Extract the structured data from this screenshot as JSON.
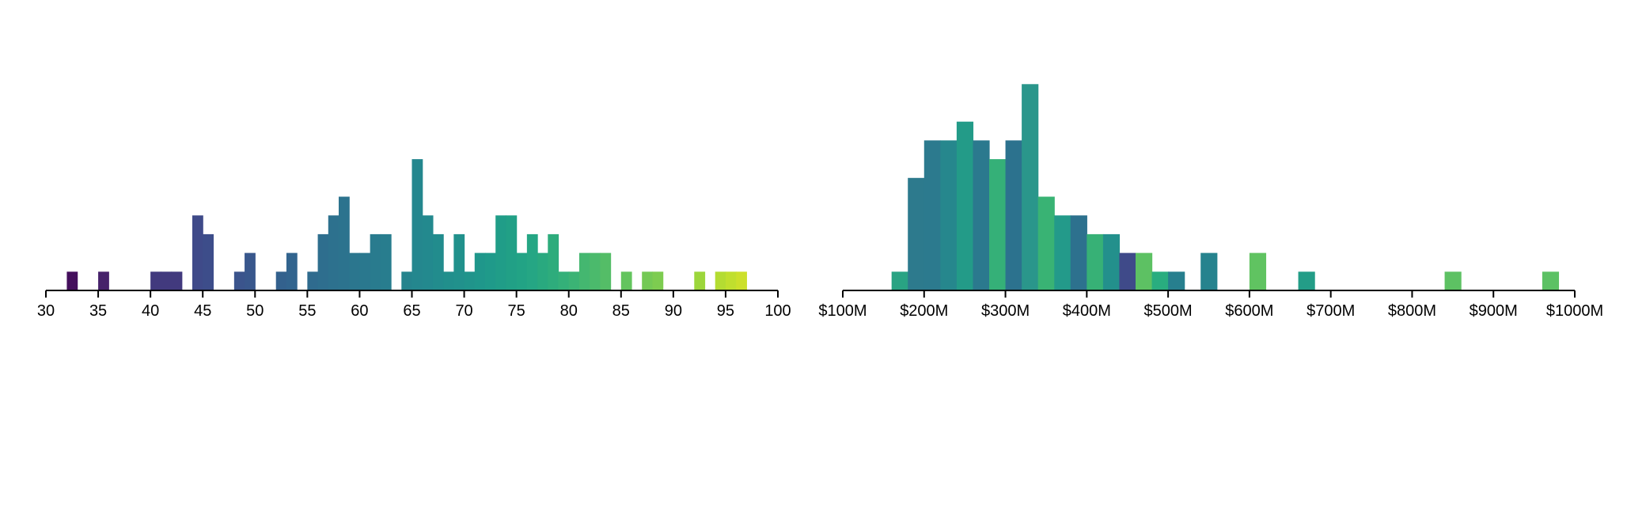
{
  "chart_data": [
    {
      "type": "bar",
      "xlabel": "",
      "ylabel": "",
      "xlim": [
        30,
        100
      ],
      "bin_width": 1,
      "ylim": [
        0,
        7
      ],
      "x_ticks": [
        {
          "value": 30,
          "label": "30"
        },
        {
          "value": 35,
          "label": "35"
        },
        {
          "value": 40,
          "label": "40"
        },
        {
          "value": 45,
          "label": "45"
        },
        {
          "value": 50,
          "label": "50"
        },
        {
          "value": 55,
          "label": "55"
        },
        {
          "value": 60,
          "label": "60"
        },
        {
          "value": 65,
          "label": "65"
        },
        {
          "value": 70,
          "label": "70"
        },
        {
          "value": 75,
          "label": "75"
        },
        {
          "value": 80,
          "label": "80"
        },
        {
          "value": 85,
          "label": "85"
        },
        {
          "value": 90,
          "label": "90"
        },
        {
          "value": 95,
          "label": "95"
        },
        {
          "value": 100,
          "label": "100"
        }
      ],
      "bars": [
        {
          "x": 32,
          "count": 1,
          "color": "#440f5c"
        },
        {
          "x": 35,
          "count": 1,
          "color": "#46216a"
        },
        {
          "x": 40,
          "count": 1,
          "color": "#423a7e"
        },
        {
          "x": 41,
          "count": 1,
          "color": "#423a7e"
        },
        {
          "x": 42,
          "count": 1,
          "color": "#423a7e"
        },
        {
          "x": 44,
          "count": 4,
          "color": "#3f4a89"
        },
        {
          "x": 45,
          "count": 3,
          "color": "#3d4d8a"
        },
        {
          "x": 48,
          "count": 1,
          "color": "#3b548c"
        },
        {
          "x": 49,
          "count": 2,
          "color": "#39578c"
        },
        {
          "x": 52,
          "count": 1,
          "color": "#33618d"
        },
        {
          "x": 53,
          "count": 2,
          "color": "#32648e"
        },
        {
          "x": 55,
          "count": 1,
          "color": "#2f6b8e"
        },
        {
          "x": 56,
          "count": 3,
          "color": "#2e6e8e"
        },
        {
          "x": 57,
          "count": 4,
          "color": "#2d718e"
        },
        {
          "x": 58,
          "count": 5,
          "color": "#2c738e"
        },
        {
          "x": 59,
          "count": 2,
          "color": "#2b768e"
        },
        {
          "x": 60,
          "count": 2,
          "color": "#2a788e"
        },
        {
          "x": 61,
          "count": 3,
          "color": "#297b8e"
        },
        {
          "x": 62,
          "count": 3,
          "color": "#287d8e"
        },
        {
          "x": 64,
          "count": 1,
          "color": "#25848d"
        },
        {
          "x": 65,
          "count": 7,
          "color": "#24878e"
        },
        {
          "x": 66,
          "count": 4,
          "color": "#23898e"
        },
        {
          "x": 67,
          "count": 3,
          "color": "#228c8d"
        },
        {
          "x": 68,
          "count": 1,
          "color": "#218f8c"
        },
        {
          "x": 69,
          "count": 3,
          "color": "#21918c"
        },
        {
          "x": 70,
          "count": 1,
          "color": "#20948b"
        },
        {
          "x": 71,
          "count": 2,
          "color": "#1f978b"
        },
        {
          "x": 72,
          "count": 2,
          "color": "#1f9a8a"
        },
        {
          "x": 73,
          "count": 4,
          "color": "#209d88"
        },
        {
          "x": 74,
          "count": 4,
          "color": "#21a086"
        },
        {
          "x": 75,
          "count": 2,
          "color": "#22a385"
        },
        {
          "x": 76,
          "count": 3,
          "color": "#25a684"
        },
        {
          "x": 77,
          "count": 2,
          "color": "#29a97f"
        },
        {
          "x": 78,
          "count": 3,
          "color": "#2eac7c"
        },
        {
          "x": 79,
          "count": 1,
          "color": "#34b079"
        },
        {
          "x": 80,
          "count": 1,
          "color": "#3bb375"
        },
        {
          "x": 81,
          "count": 2,
          "color": "#44b770"
        },
        {
          "x": 82,
          "count": 2,
          "color": "#4bba6c"
        },
        {
          "x": 83,
          "count": 2,
          "color": "#54bd67"
        },
        {
          "x": 85,
          "count": 1,
          "color": "#63c45e"
        },
        {
          "x": 87,
          "count": 1,
          "color": "#74c955"
        },
        {
          "x": 88,
          "count": 1,
          "color": "#7dcc50"
        },
        {
          "x": 92,
          "count": 1,
          "color": "#9cd63b"
        },
        {
          "x": 94,
          "count": 1,
          "color": "#b4dc32"
        },
        {
          "x": 95,
          "count": 1,
          "color": "#c0df2e"
        },
        {
          "x": 96,
          "count": 1,
          "color": "#cce02b"
        }
      ]
    },
    {
      "type": "bar",
      "xlabel": "",
      "ylabel": "",
      "xlim": [
        100,
        1000
      ],
      "bin_width": 20,
      "ylim": [
        0,
        11
      ],
      "x_ticks": [
        {
          "value": 100,
          "label": "$100M"
        },
        {
          "value": 200,
          "label": "$200M"
        },
        {
          "value": 300,
          "label": "$300M"
        },
        {
          "value": 400,
          "label": "$400M"
        },
        {
          "value": 500,
          "label": "$500M"
        },
        {
          "value": 600,
          "label": "$600M"
        },
        {
          "value": 700,
          "label": "$700M"
        },
        {
          "value": 800,
          "label": "$800M"
        },
        {
          "value": 900,
          "label": "$900M"
        },
        {
          "value": 1000,
          "label": "$1000M"
        }
      ],
      "bars": [
        {
          "x": 160,
          "count": 1,
          "color": "#29a383"
        },
        {
          "x": 180,
          "count": 6,
          "color": "#2d7a8d"
        },
        {
          "x": 200,
          "count": 8,
          "color": "#2c7a8e"
        },
        {
          "x": 220,
          "count": 8,
          "color": "#26878d"
        },
        {
          "x": 240,
          "count": 9,
          "color": "#239b88"
        },
        {
          "x": 260,
          "count": 8,
          "color": "#2b798e"
        },
        {
          "x": 280,
          "count": 7,
          "color": "#35b078"
        },
        {
          "x": 300,
          "count": 8,
          "color": "#2c728e"
        },
        {
          "x": 320,
          "count": 11,
          "color": "#2a968b"
        },
        {
          "x": 340,
          "count": 5,
          "color": "#39b374"
        },
        {
          "x": 360,
          "count": 4,
          "color": "#239a8a"
        },
        {
          "x": 380,
          "count": 4,
          "color": "#2d718e"
        },
        {
          "x": 400,
          "count": 3,
          "color": "#37b176"
        },
        {
          "x": 420,
          "count": 3,
          "color": "#23908c"
        },
        {
          "x": 440,
          "count": 2,
          "color": "#3f4a89"
        },
        {
          "x": 460,
          "count": 2,
          "color": "#5dc163"
        },
        {
          "x": 480,
          "count": 1,
          "color": "#29ad7f"
        },
        {
          "x": 500,
          "count": 1,
          "color": "#277f8e"
        },
        {
          "x": 540,
          "count": 2,
          "color": "#26838e"
        },
        {
          "x": 600,
          "count": 2,
          "color": "#60c361"
        },
        {
          "x": 660,
          "count": 1,
          "color": "#239d87"
        },
        {
          "x": 840,
          "count": 1,
          "color": "#5dc163"
        },
        {
          "x": 960,
          "count": 1,
          "color": "#5cc164"
        }
      ]
    }
  ]
}
